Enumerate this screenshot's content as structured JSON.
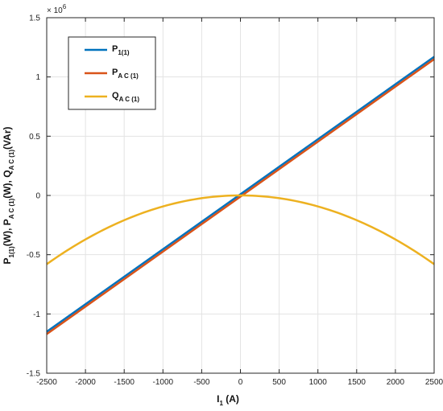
{
  "chart_data": {
    "type": "line",
    "title": "",
    "xlabel": {
      "main": "I",
      "sub": "1",
      "rest": " (A)"
    },
    "ylabel": {
      "p1": "P",
      "p1_sub": "1(1)",
      "p1_unit": "(W), P",
      "pac_sub": "A C (1)",
      "pac_unit": "(W), Q",
      "qac_sub": "A C (1)",
      "qac_unit": "(VAr)"
    },
    "y_exponent": {
      "base": "× 10",
      "power": "6"
    },
    "xlim": [
      -2500,
      2500
    ],
    "ylim": [
      -1.5,
      1.5
    ],
    "xticks": [
      -2500,
      -2000,
      -1500,
      -1000,
      -500,
      0,
      500,
      1000,
      1500,
      2000,
      2500
    ],
    "yticks": [
      -1.5,
      -1,
      -0.5,
      0,
      0.5,
      1,
      1.5
    ],
    "xtick_labels": [
      "-2500",
      "-2000",
      "-1500",
      "-1000",
      "-500",
      "0",
      "500",
      "1000",
      "1500",
      "2000",
      "2500"
    ],
    "ytick_labels": [
      "-1.5",
      "-1",
      "-0.5",
      "0",
      "0.5",
      "1",
      "1.5"
    ],
    "grid": true,
    "legend_position": "top-left",
    "series": [
      {
        "name": "P",
        "name_sub": "1(1)",
        "color": "#0072BD",
        "x": [
          -2500,
          2500
        ],
        "y": [
          -1.15,
          1.17
        ]
      },
      {
        "name": "P",
        "name_sub": "A C (1)",
        "color": "#D95319",
        "x": [
          -2500,
          2500
        ],
        "y": [
          -1.17,
          1.15
        ]
      },
      {
        "name": "Q",
        "name_sub": "A C (1)",
        "color": "#EDB120",
        "x": [
          -2500,
          -2000,
          -1500,
          -1000,
          -500,
          0,
          500,
          1000,
          1500,
          2000,
          2500
        ],
        "y": [
          -0.58,
          -0.37,
          -0.21,
          -0.093,
          -0.023,
          0,
          -0.023,
          -0.093,
          -0.21,
          -0.37,
          -0.58
        ]
      }
    ]
  }
}
